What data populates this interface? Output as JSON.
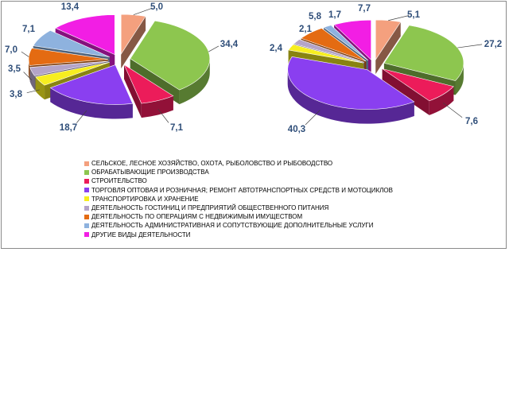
{
  "legend": [
    {
      "label": "СЕЛЬСКОЕ, ЛЕСНОЕ ХОЗЯЙСТВО, ОХОТА, РЫБОЛОВСТВО И РЫБОВОДСТВО",
      "color": "#f4a07e"
    },
    {
      "label": "ОБРАБАТЫВАЮЩИЕ ПРОИЗВОДСТВА",
      "color": "#8dc64f"
    },
    {
      "label": "СТРОИТЕЛЬСТВО",
      "color": "#ec1c5a"
    },
    {
      "label": "ТОРГОВЛЯ ОПТОВАЯ И РОЗНИЧНАЯ; РЕМОНТ АВТОТРАНСПОРТНЫХ СРЕДСТВ И МОТОЦИКЛОВ",
      "color": "#8a3ff0"
    },
    {
      "label": "ТРАНСПОРТИРОВКА И ХРАНЕНИЕ",
      "color": "#f7ee1f"
    },
    {
      "label": "ДЕЯТЕЛЬНОСТЬ ГОСТИНИЦ И ПРЕДПРИЯТИЙ ОБЩЕСТВЕННОГО ПИТАНИЯ",
      "color": "#b4a4c8"
    },
    {
      "label": "ДЕЯТЕЛЬНОСТЬ ПО ОПЕРАЦИЯМ С НЕДВИЖИМЫМ ИМУЩЕСТВОМ",
      "color": "#e46b12"
    },
    {
      "label": "ДЕЯТЕЛЬНОСТЬ АДМИНИСТРАТИВНАЯ И СОПУТСТВУЮЩИЕ ДОПОЛНИТЕЛЬНЫЕ УСЛУГИ",
      "color": "#8eb2de"
    },
    {
      "label": "ДРУГИЕ ВИДЫ ДЕЯТЕЛЬНОСТИ",
      "color": "#f21ee4"
    }
  ],
  "chart_data": [
    {
      "type": "pie",
      "categories": [
        "СЕЛЬСКОЕ, ЛЕСНОЕ ХОЗЯЙСТВО, ОХОТА, РЫБОЛОВСТВО И РЫБОВОДСТВО",
        "ОБРАБАТЫВАЮЩИЕ ПРОИЗВОДСТВА",
        "СТРОИТЕЛЬСТВО",
        "ТОРГОВЛЯ ОПТОВАЯ И РОЗНИЧНАЯ; РЕМОНТ АВТОТРАНСПОРТНЫХ СРЕДСТВ И МОТОЦИКЛОВ",
        "ТРАНСПОРТИРОВКА И ХРАНЕНИЕ",
        "ДЕЯТЕЛЬНОСТЬ ГОСТИНИЦ И ПРЕДПРИЯТИЙ ОБЩЕСТВЕННОГО ПИТАНИЯ",
        "ДЕЯТЕЛЬНОСТЬ ПО ОПЕРАЦИЯМ С НЕДВИЖИМЫМ ИМУЩЕСТВОМ",
        "ДЕЯТЕЛЬНОСТЬ АДМИНИСТРАТИВНАЯ И СОПУТСТВУЮЩИЕ ДОПОЛНИТЕЛЬНЫЕ УСЛУГИ",
        "ДРУГИЕ ВИДЫ ДЕЯТЕЛЬНОСТИ"
      ],
      "values": [
        5.0,
        34.4,
        7.1,
        18.7,
        3.8,
        3.5,
        7.0,
        7.1,
        13.4
      ],
      "labels": [
        "5,0",
        "34,4",
        "7,1",
        "18,7",
        "3,8",
        "3,5",
        "7,0",
        "7,1",
        "13,4"
      ],
      "style": "3d-exploded"
    },
    {
      "type": "pie",
      "categories": [
        "СЕЛЬСКОЕ, ЛЕСНОЕ ХОЗЯЙСТВО, ОХОТА, РЫБОЛОВСТВО И РЫБОВОДСТВО",
        "ОБРАБАТЫВАЮЩИЕ ПРОИЗВОДСТВА",
        "СТРОИТЕЛЬСТВО",
        "ТОРГОВЛЯ ОПТОВАЯ И РОЗНИЧНАЯ; РЕМОНТ АВТОТРАНСПОРТНЫХ СРЕДСТВ И МОТОЦИКЛОВ",
        "ТРАНСПОРТИРОВКА И ХРАНЕНИЕ",
        "ДЕЯТЕЛЬНОСТЬ ГОСТИНИЦ И ПРЕДПРИЯТИЙ ОБЩЕСТВЕННОГО ПИТАНИЯ",
        "ДЕЯТЕЛЬНОСТЬ ПО ОПЕРАЦИЯМ С НЕДВИЖИМЫМ ИМУЩЕСТВОМ",
        "ДЕЯТЕЛЬНОСТЬ АДМИНИСТРАТИВНАЯ И СОПУТСТВУЮЩИЕ ДОПОЛНИТЕЛЬНЫЕ УСЛУГИ",
        "ДРУГИЕ ВИДЫ ДЕЯТЕЛЬНОСТИ"
      ],
      "values": [
        5.1,
        27.2,
        7.6,
        40.3,
        2.4,
        2.1,
        5.8,
        1.7,
        7.7
      ],
      "labels": [
        "5,1",
        "27,2",
        "7,6",
        "40,3",
        "2,4",
        "2,1",
        "5,8",
        "1,7",
        "7,7"
      ],
      "style": "3d-exploded"
    }
  ]
}
